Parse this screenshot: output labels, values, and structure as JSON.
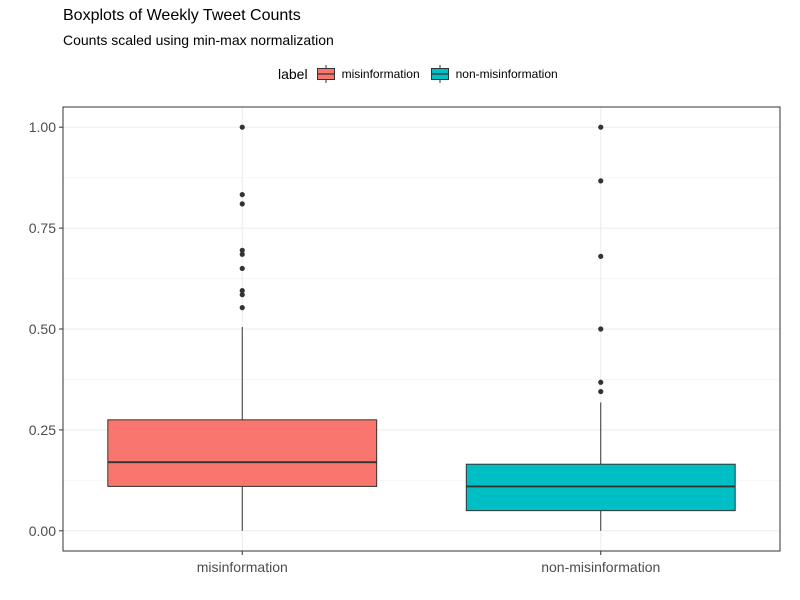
{
  "chart_data": {
    "type": "boxplot",
    "title": "Boxplots of Weekly Tweet Counts",
    "subtitle": "Counts scaled using min-max normalization",
    "xlabel": "",
    "ylabel": "",
    "ylim": [
      -0.05,
      1.05
    ],
    "yticks": [
      "0.00",
      "0.25",
      "0.50",
      "0.75",
      "1.00"
    ],
    "ytick_values": [
      0.0,
      0.25,
      0.5,
      0.75,
      1.0
    ],
    "grid": true,
    "legend": {
      "title": "label",
      "placement": "top",
      "entries": [
        "misinformation",
        "non-misinformation"
      ]
    },
    "categories": [
      "misinformation",
      "non-misinformation"
    ],
    "series": [
      {
        "name": "misinformation",
        "color": "#F8766D",
        "whisker_low": 0.0,
        "q1": 0.11,
        "median": 0.17,
        "q3": 0.275,
        "whisker_high": 0.505,
        "outliers": [
          0.553,
          0.585,
          0.595,
          0.65,
          0.685,
          0.695,
          0.81,
          0.833,
          1.0
        ]
      },
      {
        "name": "non-misinformation",
        "color": "#00BFC4",
        "whisker_low": 0.0,
        "q1": 0.05,
        "median": 0.11,
        "q3": 0.165,
        "whisker_high": 0.318,
        "outliers": [
          0.345,
          0.368,
          0.5,
          0.68,
          0.867,
          1.0
        ]
      }
    ]
  }
}
